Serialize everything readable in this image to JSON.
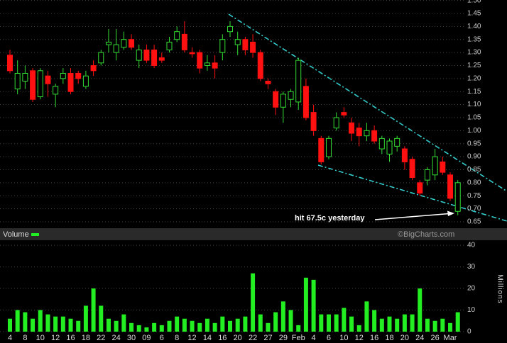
{
  "chart_data": [
    {
      "type": "candlestick",
      "annotation": "hit 67.5c yesterday",
      "watermark": "©BigCharts.com",
      "categories": [
        "4",
        null,
        "8",
        null,
        "10",
        null,
        "12",
        null,
        "16",
        null,
        "18",
        null,
        "22",
        null,
        "24",
        null,
        "30",
        null,
        "09",
        null,
        "6",
        null,
        "8",
        null,
        "12",
        null,
        "14",
        null,
        "16",
        null,
        "20",
        null,
        "22",
        null,
        "27",
        null,
        "29",
        null,
        "Feb",
        null,
        "4",
        null,
        "6",
        null,
        "10",
        null,
        "12",
        null,
        "16",
        null,
        "18",
        null,
        "20",
        null,
        "24",
        null,
        "26",
        null,
        "Mar",
        null
      ],
      "open": [
        1.29,
        1.16,
        1.19,
        1.23,
        1.13,
        1.21,
        1.14,
        1.2,
        1.22,
        1.22,
        1.17,
        1.25,
        1.26,
        1.33,
        1.3,
        1.32,
        1.35,
        1.27,
        1.31,
        1.31,
        1.28,
        1.31,
        1.35,
        1.37,
        1.3,
        1.3,
        1.25,
        1.26,
        1.3,
        1.38,
        1.33,
        1.35,
        1.34,
        1.3,
        1.19,
        1.15,
        1.09,
        1.12,
        1.11,
        1.17,
        1.07,
        0.97,
        0.9,
        1.01,
        1.07,
        1.03,
        1.01,
        0.98,
        1.0,
        0.93,
        0.91,
        0.94,
        0.93,
        0.89,
        0.8,
        0.81,
        0.83,
        0.88,
        0.83,
        0.69
      ],
      "high": [
        1.31,
        1.27,
        1.25,
        1.24,
        1.24,
        1.23,
        1.18,
        1.24,
        1.24,
        1.23,
        1.23,
        1.27,
        1.31,
        1.39,
        1.39,
        1.38,
        1.37,
        1.33,
        1.33,
        1.33,
        1.3,
        1.36,
        1.4,
        1.42,
        1.32,
        1.31,
        1.29,
        1.29,
        1.37,
        1.42,
        1.38,
        1.36,
        1.37,
        1.31,
        1.2,
        1.16,
        1.15,
        1.16,
        1.28,
        1.2,
        1.1,
        0.98,
        0.98,
        1.07,
        1.09,
        1.05,
        1.03,
        1.03,
        1.02,
        0.98,
        0.97,
        0.98,
        0.94,
        0.9,
        0.81,
        0.86,
        0.93,
        0.9,
        0.84,
        0.81
      ],
      "low": [
        1.22,
        1.14,
        1.16,
        1.11,
        1.12,
        1.13,
        1.09,
        1.18,
        1.14,
        1.18,
        1.16,
        1.21,
        1.25,
        1.3,
        1.27,
        1.31,
        1.31,
        1.24,
        1.26,
        1.24,
        1.26,
        1.3,
        1.34,
        1.3,
        1.28,
        1.22,
        1.23,
        1.2,
        1.27,
        1.36,
        1.29,
        1.29,
        1.28,
        1.19,
        1.16,
        1.06,
        1.03,
        1.09,
        1.08,
        1.04,
        0.98,
        0.87,
        0.89,
        1.0,
        1.05,
        0.96,
        0.94,
        0.96,
        0.95,
        0.91,
        0.88,
        0.92,
        0.85,
        0.81,
        0.75,
        0.79,
        0.81,
        0.83,
        0.73,
        0.675
      ],
      "close": [
        1.23,
        1.22,
        1.22,
        1.12,
        1.23,
        1.18,
        1.17,
        1.22,
        1.15,
        1.2,
        1.21,
        1.23,
        1.3,
        1.34,
        1.33,
        1.35,
        1.32,
        1.31,
        1.27,
        1.25,
        1.27,
        1.34,
        1.38,
        1.31,
        1.295,
        1.24,
        1.26,
        1.24,
        1.35,
        1.4,
        1.35,
        1.31,
        1.3,
        1.2,
        1.18,
        1.09,
        1.14,
        1.15,
        1.27,
        1.05,
        1.0,
        0.88,
        0.97,
        1.05,
        1.06,
        0.99,
        0.98,
        1.0,
        0.96,
        0.97,
        0.96,
        0.97,
        0.88,
        0.82,
        0.76,
        0.85,
        0.9,
        0.84,
        0.74,
        0.8
      ],
      "up_color": "#33dd33",
      "down_color": "#ff1111",
      "ylim": [
        0.63,
        1.5
      ],
      "yticks": [
        {
          "value": 1.5,
          "label": "1.50"
        },
        1.45,
        {
          "value": 1.4,
          "label": "1.40"
        },
        1.35,
        {
          "value": 1.3,
          "label": "1.30"
        },
        1.25,
        {
          "value": 1.2,
          "label": "1.20"
        },
        1.15,
        {
          "value": 1.1,
          "label": "1.10"
        },
        1.05,
        {
          "value": 1.0,
          "label": "1.00"
        },
        0.95,
        {
          "value": 0.9,
          "label": "0.90"
        },
        0.85,
        {
          "value": 0.8,
          "label": "0.80"
        },
        0.75,
        {
          "value": 0.7,
          "label": "0.70"
        },
        0.65
      ],
      "grid": true
    },
    {
      "type": "bar",
      "series": [
        {
          "name": "Volume",
          "color": "#22ee22",
          "values": [
            6,
            10,
            9,
            6,
            10,
            8,
            7,
            7,
            6,
            5,
            12,
            20,
            12,
            6,
            5,
            8,
            4,
            3,
            2,
            4,
            3,
            5,
            7,
            6,
            5,
            4,
            6,
            4,
            7,
            5,
            6,
            7,
            27,
            8,
            4,
            9,
            14,
            10,
            3,
            25,
            24,
            8,
            8,
            8,
            11,
            7,
            3,
            14,
            10,
            6,
            7,
            6,
            8,
            8,
            20,
            6,
            5,
            6,
            4,
            9
          ]
        }
      ],
      "y_label": "Millions",
      "ylim": [
        0,
        42
      ],
      "yticks": [
        0,
        10,
        20,
        30,
        40
      ],
      "grid": true
    }
  ]
}
